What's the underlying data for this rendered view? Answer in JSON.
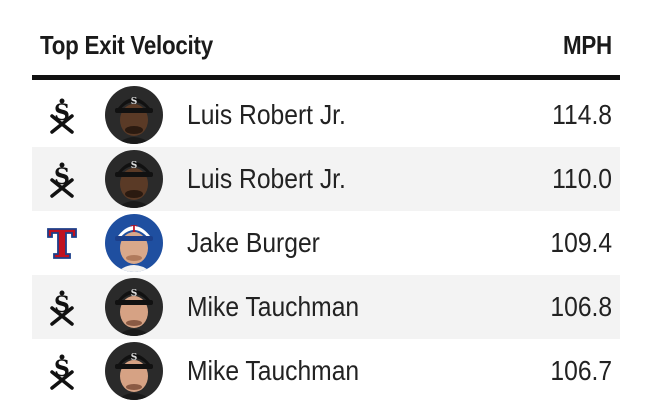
{
  "header": {
    "title": "Top Exit Velocity",
    "unit": "MPH"
  },
  "rows": [
    {
      "player": "Luis Robert Jr.",
      "mph": "114.8",
      "team_logo": "white-sox-logo-icon",
      "avatar_bg": "#2a2a2a",
      "skin": "#5a3a26",
      "cap": "#111111"
    },
    {
      "player": "Luis Robert Jr.",
      "mph": "110.0",
      "team_logo": "white-sox-logo-icon",
      "avatar_bg": "#2a2a2a",
      "skin": "#5a3a26",
      "cap": "#111111"
    },
    {
      "player": "Jake Burger",
      "mph": "109.4",
      "team_logo": "rangers-logo-icon",
      "avatar_bg": "#1f4fa0",
      "skin": "#d9a88a",
      "cap": "#ffffff"
    },
    {
      "player": "Mike Tauchman",
      "mph": "106.8",
      "team_logo": "white-sox-logo-icon",
      "avatar_bg": "#2a2a2a",
      "skin": "#d6a284",
      "cap": "#111111"
    },
    {
      "player": "Mike Tauchman",
      "mph": "106.7",
      "team_logo": "white-sox-logo-icon",
      "avatar_bg": "#2a2a2a",
      "skin": "#d6a284",
      "cap": "#111111"
    }
  ]
}
